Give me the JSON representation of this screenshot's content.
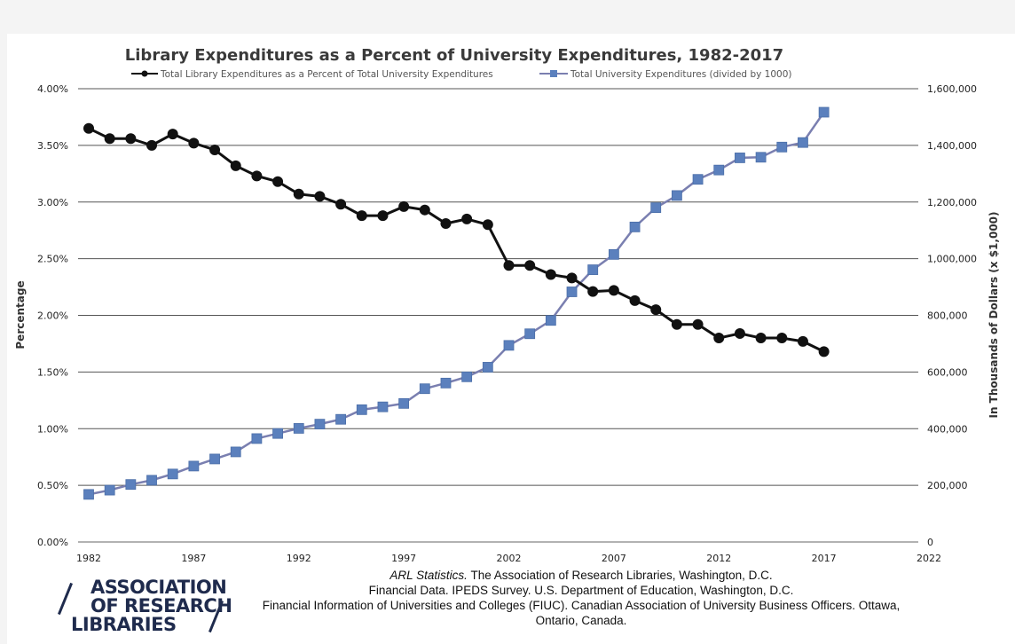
{
  "chart_data": {
    "type": "line",
    "title": "Library Expenditures as a Percent of University Expenditures, 1982-2017",
    "legend_position": "top",
    "x_ticks": [
      "1982",
      "1987",
      "1992",
      "1997",
      "2002",
      "2007",
      "2012",
      "2017",
      "2022"
    ],
    "xlim": [
      1982,
      2022
    ],
    "y_left": {
      "label": "Percentage",
      "ticks": [
        "0.00%",
        "0.50%",
        "1.00%",
        "1.50%",
        "2.00%",
        "2.50%",
        "3.00%",
        "3.50%",
        "4.00%"
      ],
      "ylim": [
        0,
        4
      ]
    },
    "y_right": {
      "label": "In Thousands of Dollars (x $1,000)",
      "ticks": [
        "0",
        "200,000",
        "400,000",
        "600,000",
        "800,000",
        "1,000,000",
        "1,200,000",
        "1,400,000",
        "1,600,000"
      ],
      "ylim": [
        0,
        1600000
      ]
    },
    "x": [
      1982,
      1983,
      1984,
      1985,
      1986,
      1987,
      1988,
      1989,
      1990,
      1991,
      1992,
      1993,
      1994,
      1995,
      1996,
      1997,
      1998,
      1999,
      2000,
      2001,
      2002,
      2003,
      2004,
      2005,
      2006,
      2007,
      2008,
      2009,
      2010,
      2011,
      2012,
      2013,
      2014,
      2015,
      2016,
      2017
    ],
    "series": [
      {
        "name": "Total Library Expenditures as a Percent of Total University Expenditures",
        "axis": "left",
        "color": "#111111",
        "marker": "circle",
        "values": [
          3.65,
          3.56,
          3.56,
          3.5,
          3.6,
          3.52,
          3.46,
          3.32,
          3.23,
          3.18,
          3.07,
          3.05,
          2.98,
          2.88,
          2.88,
          2.96,
          2.93,
          2.81,
          2.85,
          2.8,
          2.44,
          2.44,
          2.36,
          2.33,
          2.21,
          2.22,
          2.13,
          2.05,
          1.92,
          1.92,
          1.8,
          1.84,
          1.8,
          1.8,
          1.77,
          1.68
        ]
      },
      {
        "name": "Total University Expenditures (divided by 1000)",
        "axis": "right",
        "color": "#7a7fb0",
        "marker_color": "#5b80bd",
        "marker": "square",
        "values": [
          168000,
          183000,
          203000,
          218000,
          240000,
          268000,
          293000,
          318000,
          365000,
          383000,
          401000,
          416000,
          433000,
          467000,
          477000,
          489000,
          541000,
          561000,
          583000,
          617000,
          694000,
          735000,
          782000,
          883000,
          961000,
          1015000,
          1112000,
          1180000,
          1223000,
          1280000,
          1313000,
          1356000,
          1358000,
          1394000,
          1410000,
          1517000
        ]
      }
    ]
  },
  "logo": {
    "line1": "ASSOCIATION",
    "line2": "OF RESEARCH",
    "line3": "LIBRARIES"
  },
  "source": {
    "line1_italic": "ARL Statistics.",
    "line1_rest": " The Association of Research Libraries, Washington, D.C.",
    "line2": "Financial Data. IPEDS Survey. U.S. Department of Education, Washington, D.C.",
    "line3": "Financial Information of Universities and Colleges (FIUC). Canadian Association of University Business Officers. Ottawa,",
    "line4": "Ontario, Canada."
  }
}
